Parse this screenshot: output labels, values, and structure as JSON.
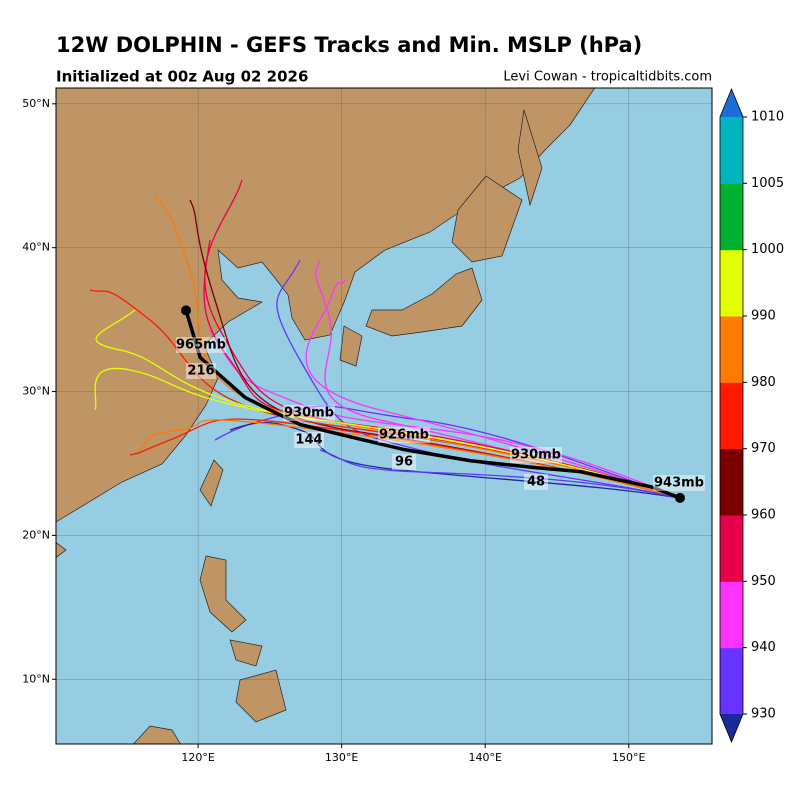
{
  "map": {
    "title": "12W DOLPHIN - GEFS Tracks and Min. MSLP (hPa)",
    "subtitle": "Initialized at 00z Aug 02 2026",
    "credit": "Levi Cowan - tropicaltidbits.com",
    "lon_range": [
      110.1,
      155.8
    ],
    "lat_range": [
      5.5,
      51.1
    ],
    "lat_labels": [
      {
        "value": 50,
        "label": "50°N"
      },
      {
        "value": 40,
        "label": "40°N"
      },
      {
        "value": 30,
        "label": "30°N"
      },
      {
        "value": 20,
        "label": "20°N"
      },
      {
        "value": 10,
        "label": "10°N"
      }
    ],
    "lon_labels": [
      {
        "value": 120,
        "label": "120°E"
      },
      {
        "value": 130,
        "label": "130°E"
      },
      {
        "value": 140,
        "label": "140°E"
      },
      {
        "value": 150,
        "label": "150°E"
      }
    ],
    "mean_track": {
      "lon": [
        153.57,
        151.54,
        146.66,
        143.59,
        138.98,
        134.38,
        130.26,
        127.12,
        125.37,
        123.28,
        121.54,
        120.14,
        119.16
      ],
      "lat": [
        22.61,
        23.38,
        24.43,
        24.7,
        25.19,
        25.96,
        26.93,
        27.7,
        28.54,
        29.58,
        31.11,
        32.37,
        35.64
      ]
    },
    "track_labels": [
      "965mb",
      "216",
      "930mb",
      "144",
      "926mb",
      "96",
      "930mb",
      "48",
      "943mb"
    ],
    "colorbar": {
      "levels": [
        930,
        940,
        950,
        960,
        970,
        980,
        990,
        1000,
        1005,
        1010
      ],
      "colors": [
        "#6633ff",
        "#ff33ff",
        "#e8004c",
        "#7a0000",
        "#ff1a00",
        "#ff7a00",
        "#e4ff00",
        "#00b030",
        "#00b4c0"
      ],
      "under_color": "#1a2a9a",
      "over_color": "#1a6fd6"
    }
  }
}
